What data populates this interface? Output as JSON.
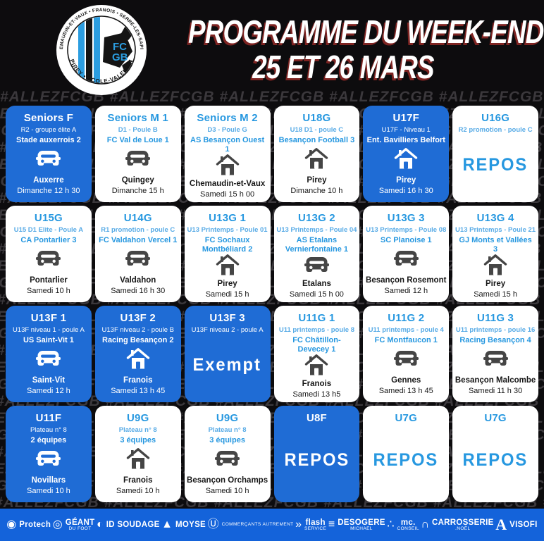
{
  "header": {
    "title_line1": "PROGRAMME DU WEEK-END",
    "title_line2": "25 ET 26 MARS",
    "logo": {
      "ring_top": "CHEMAUDIN-ET-VAUX • FRANOIS • SERRE-LES-SAPINS",
      "ring_bottom": "PIREY • ÉCOLE-VALENTIN",
      "monogram_line1": "FC",
      "monogram_line2": "GB"
    }
  },
  "hashtag": "#ALLEZFCGB",
  "cards": [
    {
      "team": "Seniors F",
      "competition": "R2 - groupe élite A",
      "opponent": "Stade auxerrois 2",
      "venue": "away",
      "location": "Auxerre",
      "time": "Dimanche 12 h 30",
      "variant": "blue",
      "special": ""
    },
    {
      "team": "Seniors M 1",
      "competition": "D1 - Poule B",
      "opponent": "FC Val de Loue 1",
      "venue": "away",
      "location": "Quingey",
      "time": "Dimanche 15 h",
      "variant": "white",
      "special": ""
    },
    {
      "team": "Seniors M 2",
      "competition": "D3 - Poule G",
      "opponent": "AS Besançon Ouest 1",
      "venue": "home",
      "location": "Chemaudin-et-Vaux",
      "time": "Samedi 15 h 00",
      "variant": "white",
      "special": ""
    },
    {
      "team": "U18G",
      "competition": "U18 D1 - poule C",
      "opponent": "Besançon Football 3",
      "venue": "home",
      "location": "Pirey",
      "time": "Dimanche 10 h",
      "variant": "white",
      "special": ""
    },
    {
      "team": "U17F",
      "competition": "U17F - Niveau 1",
      "opponent": "Ent. Bavilliers Belfort",
      "venue": "home",
      "location": "Pirey",
      "time": "Samedi 16 h 30",
      "variant": "blue",
      "special": ""
    },
    {
      "team": "U16G",
      "competition": "R2 promotion - poule C",
      "opponent": "",
      "venue": "",
      "location": "",
      "time": "",
      "variant": "white",
      "special": "REPOS"
    },
    {
      "team": "U15G",
      "competition": "U15 D1 Elite - Poule A",
      "opponent": "CA Pontarlier 3",
      "venue": "away",
      "location": "Pontarlier",
      "time": "Samedi 10 h",
      "variant": "white",
      "special": ""
    },
    {
      "team": "U14G",
      "competition": "R1 promotion - poule C",
      "opponent": "FC Valdahon Vercel 1",
      "venue": "away",
      "location": "Valdahon",
      "time": "Samedi 16 h 30",
      "variant": "white",
      "special": ""
    },
    {
      "team": "U13G 1",
      "competition": "U13 Printemps - Poule 01",
      "opponent": "FC Sochaux Montbéliard 2",
      "venue": "home",
      "location": "Pirey",
      "time": "Samedi 15 h",
      "variant": "white",
      "special": ""
    },
    {
      "team": "U13G 2",
      "competition": "U13 Printemps - Poule 04",
      "opponent": "AS Etalans Vernierfontaine 1",
      "venue": "away",
      "location": "Etalans",
      "time": "Samedi 15 h 00",
      "variant": "white",
      "special": ""
    },
    {
      "team": "U13G 3",
      "competition": "U13 Printemps - Poule 08",
      "opponent": "SC Planoise 1",
      "venue": "away",
      "location": "Besançon Rosemont",
      "time": "Samedi 12 h",
      "variant": "white",
      "special": ""
    },
    {
      "team": "U13G 4",
      "competition": "U13 Printemps - Poule 21",
      "opponent": "GJ Monts et Vallées 3",
      "venue": "home",
      "location": "Pirey",
      "time": "Samedi 15 h",
      "variant": "white",
      "special": ""
    },
    {
      "team": "U13F 1",
      "competition": "U13F niveau 1 - poule A",
      "opponent": "US Saint-Vit 1",
      "venue": "away",
      "location": "Saint-Vit",
      "time": "Samedi 12 h",
      "variant": "blue",
      "special": ""
    },
    {
      "team": "U13F 2",
      "competition": "U13F niveau 2 - poule B",
      "opponent": "Racing Besançon 2",
      "venue": "home",
      "location": "Franois",
      "time": "Samedi 13 h 45",
      "variant": "blue",
      "special": ""
    },
    {
      "team": "U13F 3",
      "competition": "U13F niveau 2 - poule A",
      "opponent": "",
      "venue": "",
      "location": "",
      "time": "",
      "variant": "blue",
      "special": "Exempt"
    },
    {
      "team": "U11G 1",
      "competition": "U11 printemps - poule 8",
      "opponent": "FC Châtillon-Devecey 1",
      "venue": "home",
      "location": "Franois",
      "time": "Samedi 13 h5",
      "variant": "white",
      "special": ""
    },
    {
      "team": "U11G 2",
      "competition": "U11 printemps - poule 4",
      "opponent": "FC Montfaucon 1",
      "venue": "away",
      "location": "Gennes",
      "time": "Samedi 13 h 45",
      "variant": "white",
      "special": ""
    },
    {
      "team": "U11G 3",
      "competition": "U11 printemps - poule 16",
      "opponent": "Racing Besançon 4",
      "venue": "away",
      "location": "Besançon Malcombe",
      "time": "Samedi 11 h 30",
      "variant": "white",
      "special": ""
    },
    {
      "team": "U11F",
      "competition": "Plateau n° 8",
      "opponent": "2 équipes",
      "venue": "away",
      "location": "Novillars",
      "time": "Samedi 10 h",
      "variant": "blue",
      "special": ""
    },
    {
      "team": "U9G",
      "competition": "Plateau n° 8",
      "opponent": "3 équipes",
      "venue": "home",
      "location": "Franois",
      "time": "Samedi 10 h",
      "variant": "white",
      "special": ""
    },
    {
      "team": "U9G",
      "competition": "Plateau n° 8",
      "opponent": "3 équipes",
      "venue": "away",
      "location": "Besançon Orchamps",
      "time": "Samedi 10 h",
      "variant": "white",
      "special": ""
    },
    {
      "team": "U8F",
      "competition": "",
      "opponent": "",
      "venue": "",
      "location": "",
      "time": "",
      "variant": "blue",
      "special": "REPOS"
    },
    {
      "team": "U7G",
      "competition": "",
      "opponent": "",
      "venue": "",
      "location": "",
      "time": "",
      "variant": "white",
      "special": "REPOS"
    },
    {
      "team": "U7G",
      "competition": "",
      "opponent": "",
      "venue": "",
      "location": "",
      "time": "",
      "variant": "white",
      "special": "REPOS"
    }
  ],
  "sponsor_bar": {
    "sponsors": [
      {
        "name": "Protech",
        "sub": "",
        "glyph": "◉",
        "icon": "protech-logo-icon"
      },
      {
        "name": "GÉANT",
        "sub": "du Foot",
        "glyph": "◎",
        "icon": "geant-du-foot-badge-icon"
      },
      {
        "name": "ID SOUDAGE",
        "sub": "",
        "glyph": "◐",
        "icon": "id-soudage-logo-icon"
      },
      {
        "name": "MOYSE",
        "sub": "",
        "glyph": "▲",
        "icon": "moyse-mountains-icon"
      },
      {
        "name": "",
        "sub": "Commerçants autrement",
        "glyph": "Ⓤ",
        "icon": "u-commercants-logo-icon"
      },
      {
        "name": "flash",
        "sub": "service",
        "glyph": "»",
        "icon": "flash-swoosh-icon"
      },
      {
        "name": "DESOGERE",
        "sub": "Michael",
        "glyph": "≡",
        "icon": "desogere-stripes-icon"
      },
      {
        "name": "mc.",
        "sub": "conseil",
        "glyph": "∴",
        "icon": "mc-network-dots-icon"
      },
      {
        "name": "CARROSSERIE",
        "sub": ".Noël",
        "glyph": "∩",
        "icon": "carrosserie-noel-car-icon"
      },
      {
        "name": "VISOFI",
        "sub": "",
        "glyph": "A",
        "icon": "avisofi-a-icon"
      }
    ]
  },
  "colors": {
    "background": "#0d0c0e",
    "card_blue": "#1f6cd5",
    "accent_blue": "#2798e0",
    "light_blue": "#58abe6",
    "sponsor_bar_blue": "#1463da",
    "title_shadow_red": "#7e2422",
    "pattern_gray": "#3b383c"
  }
}
